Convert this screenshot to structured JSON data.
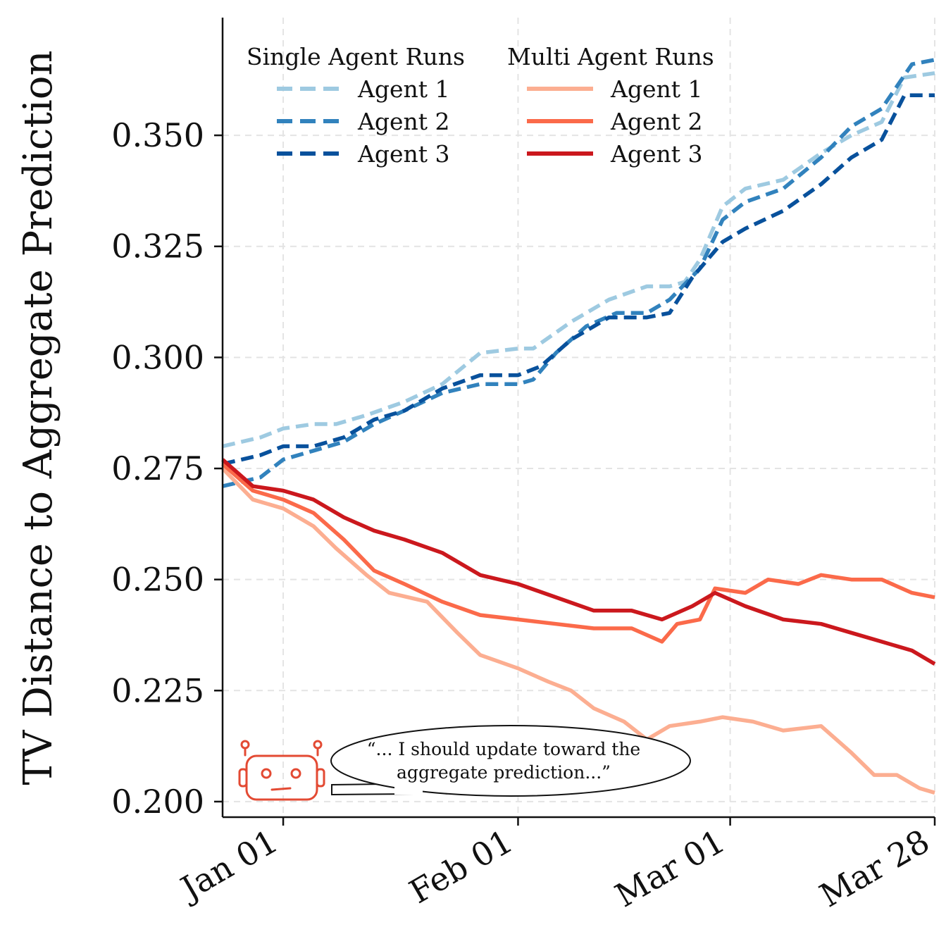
{
  "chart_data": {
    "type": "line",
    "title": "",
    "xlabel": "",
    "ylabel": "TV Distance to Aggregate Prediction",
    "x_range": [
      "2024-12-24",
      "2025-03-28"
    ],
    "ylim": [
      0.1965,
      0.3765
    ],
    "x_ticks": [
      {
        "date": "2025-01-01",
        "label": "Jan 01"
      },
      {
        "date": "2025-02-01",
        "label": "Feb 01"
      },
      {
        "date": "2025-03-01",
        "label": "Mar 01"
      },
      {
        "date": "2025-03-28",
        "label": "Mar 28"
      }
    ],
    "y_ticks": [
      {
        "value": 0.2,
        "label": "0.200"
      },
      {
        "value": 0.225,
        "label": "0.225"
      },
      {
        "value": 0.25,
        "label": "0.250"
      },
      {
        "value": 0.275,
        "label": "0.275"
      },
      {
        "value": 0.3,
        "label": "0.300"
      },
      {
        "value": 0.325,
        "label": "0.325"
      },
      {
        "value": 0.35,
        "label": "0.350"
      }
    ],
    "grid": true,
    "legend_placement": "top-left",
    "legend_groups": [
      {
        "title": "Single Agent Runs",
        "series_indices": [
          0,
          1,
          2
        ]
      },
      {
        "title": "Multi Agent Runs",
        "series_indices": [
          3,
          4,
          5
        ]
      }
    ],
    "series": [
      {
        "name": "Agent 1",
        "group": "Single Agent Runs",
        "color": "#9ecae1",
        "dashed": true,
        "points": [
          [
            "2024-12-24",
            0.28
          ],
          [
            "2024-12-29",
            0.282
          ],
          [
            "2025-01-01",
            0.284
          ],
          [
            "2025-01-05",
            0.285
          ],
          [
            "2025-01-08",
            0.285
          ],
          [
            "2025-01-12",
            0.287
          ],
          [
            "2025-01-17",
            0.29
          ],
          [
            "2025-01-22",
            0.294
          ],
          [
            "2025-01-27",
            0.301
          ],
          [
            "2025-02-01",
            0.302
          ],
          [
            "2025-02-03",
            0.302
          ],
          [
            "2025-02-08",
            0.308
          ],
          [
            "2025-02-13",
            0.313
          ],
          [
            "2025-02-18",
            0.316
          ],
          [
            "2025-02-21",
            0.316
          ],
          [
            "2025-02-23",
            0.317
          ],
          [
            "2025-02-25",
            0.322
          ],
          [
            "2025-02-28",
            0.334
          ],
          [
            "2025-03-03",
            0.338
          ],
          [
            "2025-03-08",
            0.34
          ],
          [
            "2025-03-13",
            0.346
          ],
          [
            "2025-03-17",
            0.35
          ],
          [
            "2025-03-21",
            0.353
          ],
          [
            "2025-03-24",
            0.363
          ],
          [
            "2025-03-28",
            0.364
          ]
        ]
      },
      {
        "name": "Agent 2",
        "group": "Single Agent Runs",
        "color": "#3182bd",
        "dashed": true,
        "points": [
          [
            "2024-12-24",
            0.271
          ],
          [
            "2024-12-29",
            0.273
          ],
          [
            "2025-01-01",
            0.277
          ],
          [
            "2025-01-05",
            0.279
          ],
          [
            "2025-01-09",
            0.281
          ],
          [
            "2025-01-13",
            0.285
          ],
          [
            "2025-01-17",
            0.288
          ],
          [
            "2025-01-22",
            0.292
          ],
          [
            "2025-01-27",
            0.294
          ],
          [
            "2025-02-01",
            0.294
          ],
          [
            "2025-02-03",
            0.295
          ],
          [
            "2025-02-06",
            0.301
          ],
          [
            "2025-02-10",
            0.307
          ],
          [
            "2025-02-14",
            0.31
          ],
          [
            "2025-02-18",
            0.31
          ],
          [
            "2025-02-21",
            0.313
          ],
          [
            "2025-02-25",
            0.32
          ],
          [
            "2025-02-28",
            0.331
          ],
          [
            "2025-03-03",
            0.335
          ],
          [
            "2025-03-08",
            0.338
          ],
          [
            "2025-03-13",
            0.345
          ],
          [
            "2025-03-17",
            0.352
          ],
          [
            "2025-03-21",
            0.356
          ],
          [
            "2025-03-25",
            0.366
          ],
          [
            "2025-03-28",
            0.367
          ]
        ]
      },
      {
        "name": "Agent 3",
        "group": "Single Agent Runs",
        "color": "#08519c",
        "dashed": true,
        "points": [
          [
            "2024-12-24",
            0.276
          ],
          [
            "2024-12-29",
            0.278
          ],
          [
            "2025-01-01",
            0.28
          ],
          [
            "2025-01-05",
            0.28
          ],
          [
            "2025-01-09",
            0.282
          ],
          [
            "2025-01-13",
            0.286
          ],
          [
            "2025-01-17",
            0.288
          ],
          [
            "2025-01-22",
            0.293
          ],
          [
            "2025-01-27",
            0.296
          ],
          [
            "2025-02-01",
            0.296
          ],
          [
            "2025-02-04",
            0.298
          ],
          [
            "2025-02-08",
            0.304
          ],
          [
            "2025-02-13",
            0.309
          ],
          [
            "2025-02-18",
            0.309
          ],
          [
            "2025-02-21",
            0.31
          ],
          [
            "2025-02-24",
            0.318
          ],
          [
            "2025-02-28",
            0.326
          ],
          [
            "2025-03-03",
            0.329
          ],
          [
            "2025-03-08",
            0.333
          ],
          [
            "2025-03-13",
            0.339
          ],
          [
            "2025-03-17",
            0.345
          ],
          [
            "2025-03-21",
            0.349
          ],
          [
            "2025-03-24",
            0.359
          ],
          [
            "2025-03-28",
            0.359
          ]
        ]
      },
      {
        "name": "Agent 1",
        "group": "Multi Agent Runs",
        "color": "#fcae91",
        "dashed": false,
        "points": [
          [
            "2024-12-24",
            0.275
          ],
          [
            "2024-12-28",
            0.268
          ],
          [
            "2025-01-01",
            0.266
          ],
          [
            "2025-01-05",
            0.262
          ],
          [
            "2025-01-08",
            0.257
          ],
          [
            "2025-01-12",
            0.251
          ],
          [
            "2025-01-15",
            0.247
          ],
          [
            "2025-01-20",
            0.245
          ],
          [
            "2025-01-24",
            0.238
          ],
          [
            "2025-01-27",
            0.233
          ],
          [
            "2025-02-01",
            0.23
          ],
          [
            "2025-02-05",
            0.227
          ],
          [
            "2025-02-08",
            0.225
          ],
          [
            "2025-02-11",
            0.221
          ],
          [
            "2025-02-15",
            0.218
          ],
          [
            "2025-02-18",
            0.214
          ],
          [
            "2025-02-21",
            0.217
          ],
          [
            "2025-02-25",
            0.218
          ],
          [
            "2025-02-28",
            0.219
          ],
          [
            "2025-03-04",
            0.218
          ],
          [
            "2025-03-08",
            0.216
          ],
          [
            "2025-03-13",
            0.217
          ],
          [
            "2025-03-17",
            0.211
          ],
          [
            "2025-03-20",
            0.206
          ],
          [
            "2025-03-23",
            0.206
          ],
          [
            "2025-03-26",
            0.203
          ],
          [
            "2025-03-28",
            0.202
          ]
        ]
      },
      {
        "name": "Agent 2",
        "group": "Multi Agent Runs",
        "color": "#fb6a4a",
        "dashed": false,
        "points": [
          [
            "2024-12-24",
            0.276
          ],
          [
            "2024-12-28",
            0.27
          ],
          [
            "2025-01-01",
            0.268
          ],
          [
            "2025-01-05",
            0.265
          ],
          [
            "2025-01-09",
            0.259
          ],
          [
            "2025-01-13",
            0.252
          ],
          [
            "2025-01-17",
            0.249
          ],
          [
            "2025-01-22",
            0.245
          ],
          [
            "2025-01-27",
            0.242
          ],
          [
            "2025-02-01",
            0.241
          ],
          [
            "2025-02-06",
            0.24
          ],
          [
            "2025-02-11",
            0.239
          ],
          [
            "2025-02-16",
            0.239
          ],
          [
            "2025-02-20",
            0.236
          ],
          [
            "2025-02-22",
            0.24
          ],
          [
            "2025-02-25",
            0.241
          ],
          [
            "2025-02-27",
            0.248
          ],
          [
            "2025-03-03",
            0.247
          ],
          [
            "2025-03-06",
            0.25
          ],
          [
            "2025-03-10",
            0.249
          ],
          [
            "2025-03-13",
            0.251
          ],
          [
            "2025-03-17",
            0.25
          ],
          [
            "2025-03-21",
            0.25
          ],
          [
            "2025-03-25",
            0.247
          ],
          [
            "2025-03-28",
            0.246
          ]
        ]
      },
      {
        "name": "Agent 3",
        "group": "Multi Agent Runs",
        "color": "#cb181d",
        "dashed": false,
        "points": [
          [
            "2024-12-24",
            0.277
          ],
          [
            "2024-12-28",
            0.271
          ],
          [
            "2025-01-01",
            0.27
          ],
          [
            "2025-01-05",
            0.268
          ],
          [
            "2025-01-09",
            0.264
          ],
          [
            "2025-01-13",
            0.261
          ],
          [
            "2025-01-17",
            0.259
          ],
          [
            "2025-01-22",
            0.256
          ],
          [
            "2025-01-27",
            0.251
          ],
          [
            "2025-02-01",
            0.249
          ],
          [
            "2025-02-06",
            0.246
          ],
          [
            "2025-02-11",
            0.243
          ],
          [
            "2025-02-16",
            0.243
          ],
          [
            "2025-02-20",
            0.241
          ],
          [
            "2025-02-24",
            0.244
          ],
          [
            "2025-02-27",
            0.247
          ],
          [
            "2025-03-03",
            0.244
          ],
          [
            "2025-03-08",
            0.241
          ],
          [
            "2025-03-13",
            0.24
          ],
          [
            "2025-03-17",
            0.238
          ],
          [
            "2025-03-21",
            0.236
          ],
          [
            "2025-03-25",
            0.234
          ],
          [
            "2025-03-28",
            0.231
          ]
        ]
      }
    ],
    "annotation": {
      "lines": [
        "“... I should update toward the",
        "aggregate prediction...”"
      ],
      "icon": "robot-icon",
      "color": "#e34a33"
    }
  }
}
